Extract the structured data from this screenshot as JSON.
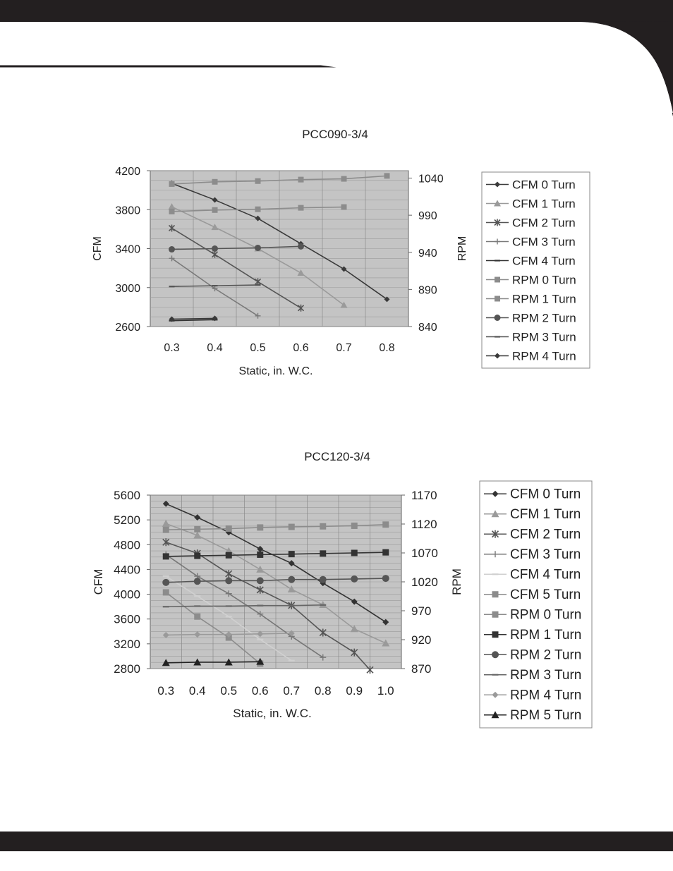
{
  "chart_data": [
    {
      "type": "line",
      "title": "PCC090-3/4",
      "xlabel": "Static, in. W.C.",
      "ylabel": "CFM",
      "y2label": "RPM",
      "x_ticks": [
        "0.3",
        "0.4",
        "0.5",
        "0.6",
        "0.7",
        "0.8"
      ],
      "y_ticks": [
        "4200",
        "3800",
        "3400",
        "3000",
        "2600"
      ],
      "y2_ticks": [
        "1040",
        "990",
        "940",
        "890",
        "840"
      ],
      "xlim": [
        0.25,
        0.85
      ],
      "ylim": [
        2600,
        4200
      ],
      "y2lim": [
        840,
        1050
      ],
      "grid": true,
      "legend_position": "right",
      "series": [
        {
          "name": "CFM 0 Turn",
          "axis": "left",
          "marker": "diamond",
          "color": "#3a3a3a",
          "x": [
            0.3,
            0.4,
            0.5,
            0.6,
            0.7,
            0.8
          ],
          "y": [
            4070,
            3900,
            3710,
            3450,
            3190,
            2880
          ]
        },
        {
          "name": "CFM 1 Turn",
          "axis": "left",
          "marker": "triangle",
          "color": "#9a9a9a",
          "x": [
            0.3,
            0.4,
            0.5,
            0.6,
            0.7
          ],
          "y": [
            3830,
            3620,
            3400,
            3150,
            2820
          ]
        },
        {
          "name": "CFM 2 Turn",
          "axis": "left",
          "marker": "asterisk",
          "color": "#555555",
          "x": [
            0.3,
            0.4,
            0.5,
            0.6
          ],
          "y": [
            3610,
            3340,
            3060,
            2790
          ]
        },
        {
          "name": "CFM 3 Turn",
          "axis": "left",
          "marker": "plus",
          "color": "#7a7a7a",
          "x": [
            0.3,
            0.4,
            0.5
          ],
          "y": [
            3300,
            2990,
            2710
          ]
        },
        {
          "name": "CFM 4 Turn",
          "axis": "left",
          "marker": "dash",
          "color": "#333333",
          "x": [
            0.3,
            0.4
          ],
          "y": [
            2660,
            2670
          ]
        },
        {
          "name": "RPM 0 Turn",
          "axis": "right",
          "marker": "square",
          "color": "#8c8c8c",
          "x": [
            0.3,
            0.4,
            0.5,
            0.6,
            0.7,
            0.8
          ],
          "y": [
            1032,
            1035,
            1036,
            1038,
            1039,
            1043
          ]
        },
        {
          "name": "RPM 1 Turn",
          "axis": "right",
          "marker": "square",
          "color": "#8c8c8c",
          "x": [
            0.3,
            0.4,
            0.5,
            0.6,
            0.7
          ],
          "y": [
            995,
            997,
            998,
            1000,
            1001
          ]
        },
        {
          "name": "RPM 2 Turn",
          "axis": "right",
          "marker": "circle",
          "color": "#555555",
          "x": [
            0.3,
            0.4,
            0.5,
            0.6
          ],
          "y": [
            944,
            945,
            946,
            948
          ]
        },
        {
          "name": "RPM 3 Turn",
          "axis": "right",
          "marker": "dash",
          "color": "#555555",
          "x": [
            0.3,
            0.4,
            0.5
          ],
          "y": [
            894,
            895,
            896
          ]
        },
        {
          "name": "RPM 4 Turn",
          "axis": "right",
          "marker": "diamond",
          "color": "#3a3a3a",
          "x": [
            0.3,
            0.4
          ],
          "y": [
            850,
            851
          ]
        }
      ]
    },
    {
      "type": "line",
      "title": "PCC120-3/4",
      "xlabel": "Static, in. W.C.",
      "ylabel": "CFM",
      "y2label": "RPM",
      "x_ticks": [
        "0.3",
        "0.4",
        "0.5",
        "0.6",
        "0.7",
        "0.8",
        "0.9",
        "1.0"
      ],
      "y_ticks": [
        "5600",
        "5200",
        "4800",
        "4400",
        "4000",
        "3600",
        "3200",
        "2800"
      ],
      "y2_ticks": [
        "1170",
        "1120",
        "1070",
        "1020",
        "970",
        "920",
        "870"
      ],
      "xlim": [
        0.25,
        1.05
      ],
      "ylim": [
        2800,
        5600
      ],
      "y2lim": [
        870,
        1170
      ],
      "grid": true,
      "legend_position": "right",
      "series": [
        {
          "name": "CFM 0 Turn",
          "axis": "left",
          "marker": "diamond",
          "color": "#333333",
          "x": [
            0.3,
            0.4,
            0.5,
            0.6,
            0.7,
            0.8,
            0.9,
            1.0
          ],
          "y": [
            5460,
            5240,
            5000,
            4730,
            4500,
            4180,
            3880,
            3550
          ]
        },
        {
          "name": "CFM 1 Turn",
          "axis": "left",
          "marker": "triangle",
          "color": "#9a9a9a",
          "x": [
            0.3,
            0.4,
            0.5,
            0.6,
            0.7,
            0.8,
            0.9,
            1.0
          ],
          "y": [
            5140,
            4950,
            4700,
            4400,
            4080,
            3830,
            3440,
            3210
          ]
        },
        {
          "name": "CFM 2 Turn",
          "axis": "left",
          "marker": "asterisk",
          "color": "#555555",
          "x": [
            0.3,
            0.4,
            0.5,
            0.6,
            0.7,
            0.8,
            0.9,
            0.95
          ],
          "y": [
            4840,
            4660,
            4330,
            4070,
            3820,
            3380,
            3060,
            2780
          ]
        },
        {
          "name": "CFM 3 Turn",
          "axis": "left",
          "marker": "plus",
          "color": "#777777",
          "x": [
            0.3,
            0.4,
            0.5,
            0.6,
            0.7,
            0.8
          ],
          "y": [
            4640,
            4290,
            4010,
            3680,
            3320,
            2980
          ]
        },
        {
          "name": "CFM 4 Turn",
          "axis": "left",
          "marker": "dash",
          "color": "#d0d0d0",
          "x": [
            0.3,
            0.4,
            0.5,
            0.6,
            0.7
          ],
          "y": [
            4290,
            3970,
            3640,
            3270,
            2930
          ]
        },
        {
          "name": "CFM 5 Turn",
          "axis": "left",
          "marker": "square",
          "color": "#8c8c8c",
          "x": [
            0.3,
            0.4,
            0.5,
            0.6
          ],
          "y": [
            4030,
            3640,
            3300,
            2880
          ]
        },
        {
          "name": "RPM 0 Turn",
          "axis": "right",
          "marker": "square",
          "color": "#8c8c8c",
          "x": [
            0.3,
            0.4,
            0.5,
            0.6,
            0.7,
            0.8,
            0.9,
            1.0
          ],
          "y": [
            1110,
            1111,
            1112,
            1114,
            1115,
            1116,
            1117,
            1119
          ]
        },
        {
          "name": "RPM 1 Turn",
          "axis": "right",
          "marker": "square",
          "color": "#333333",
          "x": [
            0.3,
            0.4,
            0.5,
            0.6,
            0.7,
            0.8,
            0.9,
            1.0
          ],
          "y": [
            1064,
            1065,
            1066,
            1067,
            1068,
            1069,
            1070,
            1071
          ]
        },
        {
          "name": "RPM 2 Turn",
          "axis": "right",
          "marker": "circle",
          "color": "#555555",
          "x": [
            0.3,
            0.4,
            0.5,
            0.6,
            0.7,
            0.8,
            0.9,
            1.0
          ],
          "y": [
            1019,
            1021,
            1022,
            1022,
            1024,
            1024,
            1025,
            1026
          ]
        },
        {
          "name": "RPM 3 Turn",
          "axis": "right",
          "marker": "dash",
          "color": "#666666",
          "x": [
            0.3,
            0.4,
            0.5,
            0.6,
            0.7,
            0.8
          ],
          "y": [
            977,
            978,
            978,
            979,
            979,
            980
          ]
        },
        {
          "name": "RPM 4 Turn",
          "axis": "right",
          "marker": "diamond",
          "color": "#9a9a9a",
          "x": [
            0.3,
            0.4,
            0.5,
            0.6,
            0.7
          ],
          "y": [
            928,
            929,
            929,
            930,
            931
          ]
        },
        {
          "name": "RPM 5 Turn",
          "axis": "right",
          "marker": "triangle",
          "color": "#222222",
          "x": [
            0.3,
            0.4,
            0.5,
            0.6
          ],
          "y": [
            880,
            881,
            881,
            882
          ]
        }
      ]
    }
  ]
}
